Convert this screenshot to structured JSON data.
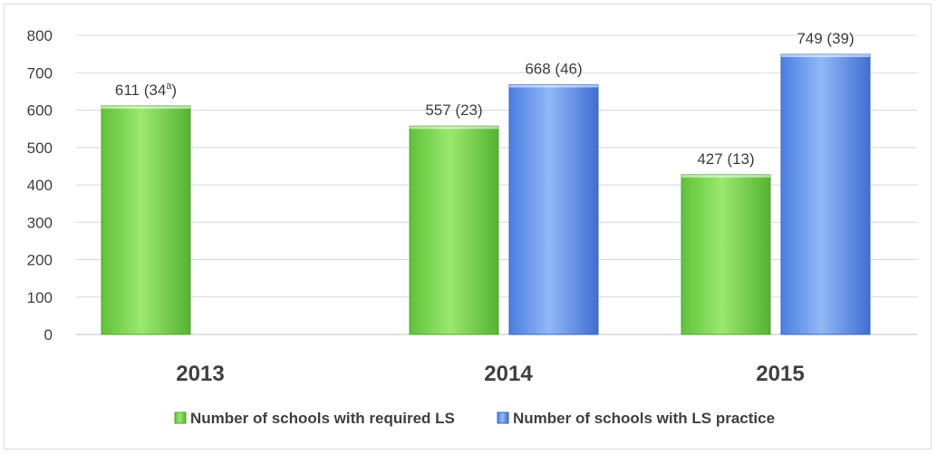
{
  "chart_data": {
    "type": "bar",
    "categories": [
      "2013",
      "2014",
      "2015"
    ],
    "series": [
      {
        "name": "Number of schools with required LS",
        "values": [
          611,
          557,
          427
        ],
        "labels": [
          "611 (34a)",
          "557 (23)",
          "427 (13)"
        ],
        "color": "#7ed957"
      },
      {
        "name": "Number of schools with LS practice",
        "values": [
          null,
          668,
          749
        ],
        "labels": [
          null,
          "668 (46)",
          "749 (39)"
        ],
        "color": "#6b9bf0"
      }
    ],
    "ylim": [
      0,
      800
    ],
    "yticks": [
      0,
      100,
      200,
      300,
      400,
      500,
      600,
      700,
      800
    ],
    "grid": true,
    "legend_position": "bottom"
  }
}
